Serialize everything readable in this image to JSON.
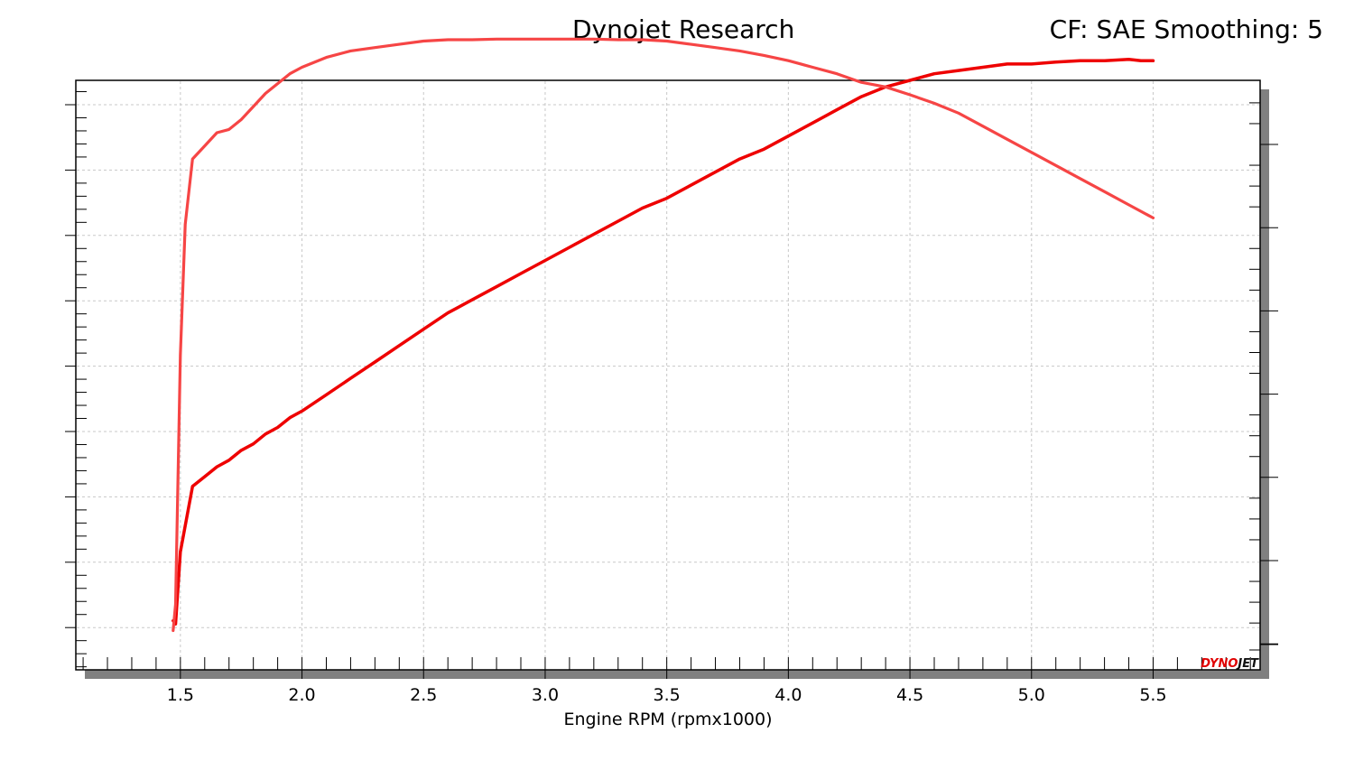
{
  "header": {
    "title": "Dynojet Research",
    "settings": "CF: SAE Smoothing: 5"
  },
  "logo": {
    "text": "DYNOJET"
  },
  "colors": {
    "series_main": "#ee0000",
    "series_secondary": "#f64545",
    "shadow": "#808080",
    "grid": "#c8c8c8"
  },
  "chart_data": {
    "type": "line",
    "title": "Dynojet Research",
    "xlabel": "Engine RPM (rpmx1000)",
    "ylabel": "",
    "xlim": [
      1.07,
      5.94
    ],
    "ylim": [
      0,
      9
    ],
    "x_ticks": [
      "1.5",
      "2.0",
      "2.5",
      "3.0",
      "3.5",
      "4.0",
      "4.5",
      "5.0",
      "5.5"
    ],
    "left_tick_count": 9,
    "right_tick_count": 7,
    "grid": true,
    "legend": "none",
    "series": [
      {
        "color": "#ee0000",
        "x": [
          1.47,
          1.48,
          1.5,
          1.55,
          1.6,
          1.65,
          1.7,
          1.75,
          1.8,
          1.85,
          1.9,
          1.95,
          2.0,
          2.1,
          2.2,
          2.3,
          2.4,
          2.5,
          2.6,
          2.7,
          2.8,
          2.9,
          3.0,
          3.1,
          3.2,
          3.3,
          3.4,
          3.5,
          3.6,
          3.7,
          3.8,
          3.9,
          4.0,
          4.1,
          4.2,
          4.3,
          4.4,
          4.5,
          4.6,
          4.7,
          4.8,
          4.9,
          5.0,
          5.1,
          5.2,
          5.3,
          5.4,
          5.45,
          5.5
        ],
        "y": [
          0.75,
          0.7,
          1.8,
          2.8,
          2.95,
          3.1,
          3.2,
          3.35,
          3.45,
          3.6,
          3.7,
          3.85,
          3.95,
          4.2,
          4.45,
          4.7,
          4.95,
          5.2,
          5.45,
          5.65,
          5.85,
          6.05,
          6.25,
          6.45,
          6.65,
          6.85,
          7.05,
          7.2,
          7.4,
          7.6,
          7.8,
          7.95,
          8.15,
          8.35,
          8.55,
          8.75,
          8.9,
          9.0,
          9.1,
          9.15,
          9.2,
          9.25,
          9.25,
          9.28,
          9.3,
          9.3,
          9.32,
          9.3,
          9.3
        ]
      },
      {
        "color": "#f64545",
        "x": [
          1.47,
          1.48,
          1.5,
          1.52,
          1.55,
          1.6,
          1.65,
          1.7,
          1.75,
          1.8,
          1.85,
          1.9,
          1.95,
          2.0,
          2.1,
          2.2,
          2.3,
          2.4,
          2.5,
          2.6,
          2.7,
          2.8,
          2.9,
          3.0,
          3.1,
          3.2,
          3.3,
          3.4,
          3.5,
          3.6,
          3.7,
          3.8,
          3.9,
          4.0,
          4.1,
          4.2,
          4.3,
          4.4,
          4.5,
          4.6,
          4.7,
          4.8,
          4.9,
          5.0,
          5.1,
          5.2,
          5.3,
          5.4,
          5.5
        ],
        "y": [
          0.6,
          1.0,
          4.8,
          6.8,
          7.8,
          8.0,
          8.2,
          8.25,
          8.4,
          8.6,
          8.8,
          8.95,
          9.1,
          9.2,
          9.35,
          9.45,
          9.5,
          9.55,
          9.6,
          9.62,
          9.62,
          9.63,
          9.63,
          9.63,
          9.63,
          9.63,
          9.62,
          9.62,
          9.6,
          9.55,
          9.5,
          9.45,
          9.38,
          9.3,
          9.2,
          9.1,
          8.97,
          8.9,
          8.78,
          8.65,
          8.5,
          8.3,
          8.1,
          7.9,
          7.7,
          7.5,
          7.3,
          7.1,
          6.9
        ]
      }
    ]
  }
}
